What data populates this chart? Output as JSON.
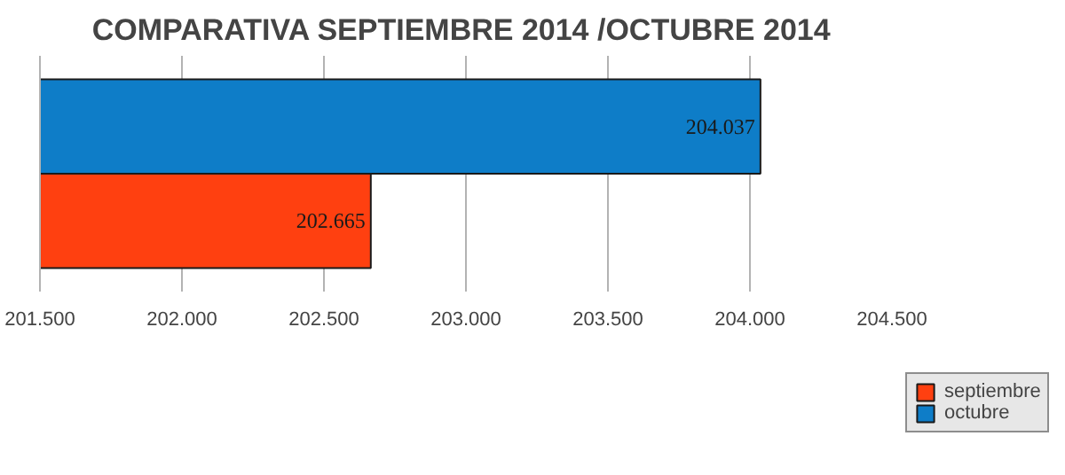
{
  "chart_data": {
    "type": "bar",
    "orientation": "horizontal",
    "title": "COMPARATIVA SEPTIEMBRE 2014 /OCTUBRE  2014",
    "categories": [
      null
    ],
    "series": [
      {
        "name": "septiembre",
        "color": "#ff4010",
        "values": [
          202665
        ],
        "value_labels": [
          "202.665"
        ]
      },
      {
        "name": "octubre",
        "color": "#0e7dc8",
        "values": [
          204037
        ],
        "value_labels": [
          "204.037"
        ]
      }
    ],
    "xlim": [
      201500,
      204500
    ],
    "xticks": [
      {
        "value": 201500,
        "label": "201.500"
      },
      {
        "value": 202000,
        "label": "202.000"
      },
      {
        "value": 202500,
        "label": "202.500"
      },
      {
        "value": 203000,
        "label": "203.000"
      },
      {
        "value": 203500,
        "label": "203.500"
      },
      {
        "value": 204000,
        "label": "204.000"
      },
      {
        "value": 204500,
        "label": "204.500"
      }
    ],
    "grid": "x",
    "legend": "right"
  }
}
